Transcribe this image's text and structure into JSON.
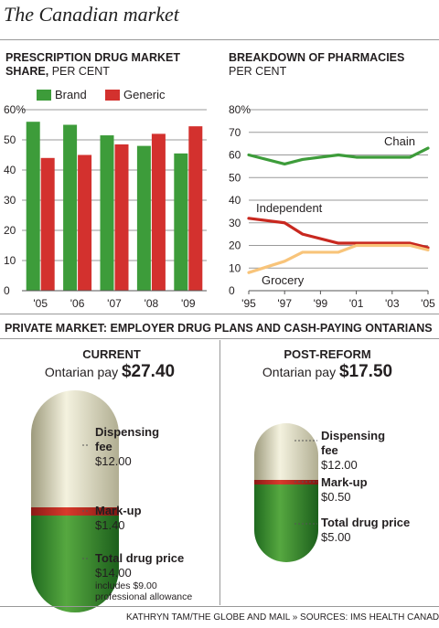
{
  "header": {
    "title": "The Canadian market"
  },
  "bar_chart": {
    "title": "PRESCRIPTION DRUG MARKET SHARE,",
    "subtitle": "PER CENT",
    "colors": {
      "Brand": "#3d9c3a",
      "Generic": "#d3312e"
    }
  },
  "line_chart": {
    "title": "BREAKDOWN OF PHARMACIES",
    "subtitle": "PER CENT",
    "colors": {
      "Chain": "#3d9c3a",
      "Independent": "#c8281f",
      "Grocery": "#f8c47a"
    }
  },
  "chart_data": [
    {
      "type": "bar",
      "categories": [
        "'05",
        "'06",
        "'07",
        "'08",
        "'09"
      ],
      "series": [
        {
          "name": "Brand",
          "values": [
            56,
            55,
            51.5,
            48,
            45.5
          ]
        },
        {
          "name": "Generic",
          "values": [
            44,
            45,
            48.5,
            52,
            54.5
          ]
        }
      ],
      "yticks": [
        "0",
        "10",
        "20",
        "30",
        "40",
        "50",
        "60%"
      ],
      "ylim": [
        0,
        60
      ],
      "legend": "top"
    },
    {
      "type": "line",
      "x": [
        1995,
        1997,
        1998,
        2000,
        2001,
        2002,
        2003,
        2004,
        2005
      ],
      "xticks": [
        "'95",
        "'97",
        "'99",
        "'01",
        "'03",
        "'05"
      ],
      "xtick_values": [
        1995,
        1997,
        1999,
        2001,
        2003,
        2005
      ],
      "series": [
        {
          "name": "Chain",
          "values": [
            60,
            56,
            58,
            60,
            59,
            59,
            59,
            59,
            63
          ]
        },
        {
          "name": "Independent",
          "values": [
            32,
            30,
            25,
            21,
            21,
            21,
            21,
            21,
            19
          ]
        },
        {
          "name": "Grocery",
          "values": [
            8,
            13,
            17,
            17,
            20,
            20,
            20,
            20,
            18
          ]
        }
      ],
      "yticks": [
        "0",
        "10",
        "20",
        "30",
        "40",
        "50",
        "60",
        "70",
        "80%"
      ],
      "ylim": [
        0,
        80
      ],
      "xlim": [
        1995,
        2005
      ]
    }
  ],
  "private_market": {
    "title": "PRIVATE MARKET: EMPLOYER DRUG PLANS AND CASH-PAYING ONTARIANS",
    "current": {
      "heading": "CURRENT",
      "pay_label": "Ontarian pay",
      "pay_amount": "$27.40",
      "items": [
        {
          "label": "Dispensing fee",
          "label_line1": "Dispensing",
          "label_line2": "fee",
          "value": "$12.00"
        },
        {
          "label": "Mark-up",
          "value": "$1.40"
        },
        {
          "label": "Total drug price",
          "value": "$14.00",
          "note1": "includes $9.00",
          "note2": "professional allowance"
        }
      ]
    },
    "post_reform": {
      "heading": "POST-REFORM",
      "pay_label": "Ontarian pay",
      "pay_amount": "$17.50",
      "items": [
        {
          "label": "Dispensing fee",
          "label_line1": "Dispensing",
          "label_line2": "fee",
          "value": "$12.00"
        },
        {
          "label": "Mark-up",
          "value": "$0.50"
        },
        {
          "label": "Total drug price",
          "value": "$5.00"
        }
      ]
    }
  },
  "footer": {
    "credit": "KATHRYN TAM/THE GLOBE AND MAIL  »  SOURCES: IMS HEALTH CANADA"
  }
}
